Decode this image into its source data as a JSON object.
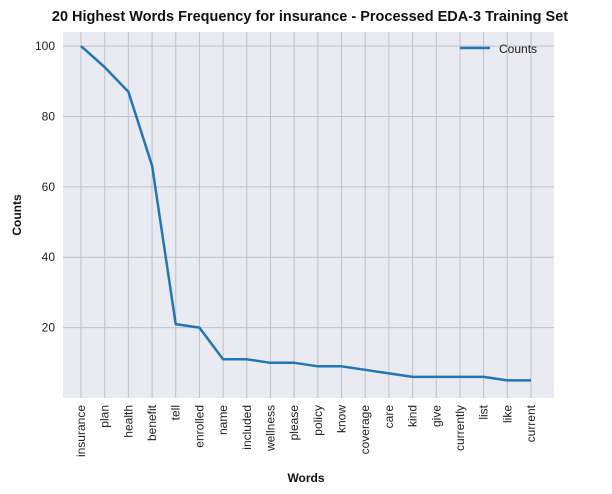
{
  "chart_data": {
    "type": "line",
    "title": "20 Highest Words Frequency for insurance - Processed EDA-3 Training Set",
    "xlabel": "Words",
    "ylabel": "Counts",
    "categories": [
      "insurance",
      "plan",
      "health",
      "benefit",
      "tell",
      "enrolled",
      "name",
      "included",
      "wellness",
      "please",
      "policy",
      "know",
      "coverage",
      "care",
      "kind",
      "give",
      "currently",
      "list",
      "like",
      "current"
    ],
    "series": [
      {
        "name": "Counts",
        "values": [
          100,
          94,
          87,
          66,
          21,
          20,
          11,
          11,
          10,
          10,
          9,
          9,
          8,
          7,
          6,
          6,
          6,
          6,
          5,
          5
        ],
        "color": "#1f77b4"
      }
    ],
    "ylim": [
      0,
      104
    ],
    "yticks": [
      20,
      40,
      60,
      80,
      100
    ],
    "grid": true,
    "legend": "top-right",
    "background": "#eaeaf2",
    "grid_color": "#c0c0c8"
  }
}
